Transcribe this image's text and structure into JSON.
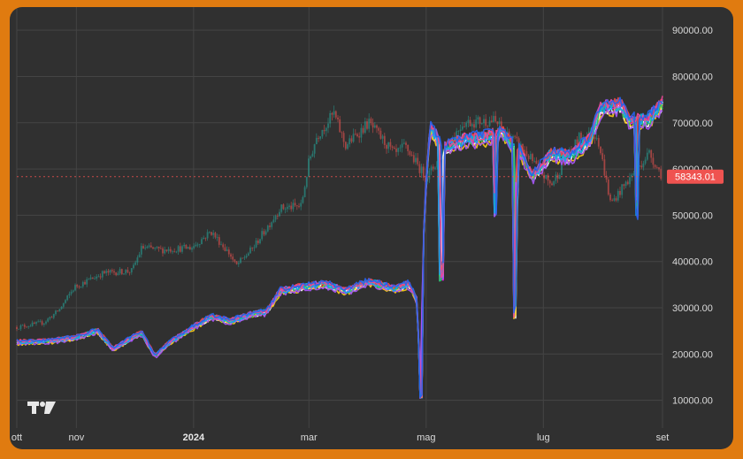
{
  "chart_data": {
    "type": "line",
    "title": "",
    "y_axis": {
      "range": [
        4000,
        95000
      ],
      "ticks": [
        "10000.00",
        "20000.00",
        "30000.00",
        "40000.00",
        "50000.00",
        "60000.00",
        "70000.00",
        "80000.00",
        "90000.00"
      ],
      "tick_values": [
        10000,
        20000,
        30000,
        40000,
        50000,
        60000,
        70000,
        80000,
        90000
      ],
      "position": "right"
    },
    "x_axis": {
      "type": "date",
      "range": [
        "2023-10-01",
        "2024-09-01"
      ],
      "ticks": [
        {
          "label": "ott",
          "date": "2023-10-01",
          "bold": false
        },
        {
          "label": "nov",
          "date": "2023-11-01",
          "bold": false
        },
        {
          "label": "2024",
          "date": "2024-01-01",
          "bold": true
        },
        {
          "label": "mar",
          "date": "2024-03-01",
          "bold": false
        },
        {
          "label": "mag",
          "date": "2024-05-01",
          "bold": false
        },
        {
          "label": "lug",
          "date": "2024-07-01",
          "bold": false
        },
        {
          "label": "set",
          "date": "2024-09-01",
          "bold": false
        }
      ]
    },
    "grid": true,
    "last_price": {
      "value": 58343.01,
      "label": "58343.01",
      "color": "#ef5350"
    },
    "candles": {
      "up_color": "#26a69a",
      "down_color": "#ef5350",
      "close_path": [
        [
          "2023-10-01",
          25800
        ],
        [
          "2023-10-15",
          26800
        ],
        [
          "2023-10-23",
          29500
        ],
        [
          "2023-10-31",
          34500
        ],
        [
          "2023-11-15",
          37500
        ],
        [
          "2023-11-30",
          38000
        ],
        [
          "2023-12-05",
          43000
        ],
        [
          "2023-12-15",
          42500
        ],
        [
          "2023-12-31",
          43000
        ],
        [
          "2024-01-10",
          46500
        ],
        [
          "2024-01-20",
          41500
        ],
        [
          "2024-01-23",
          39000
        ],
        [
          "2024-02-01",
          43000
        ],
        [
          "2024-02-15",
          51500
        ],
        [
          "2024-02-26",
          52000
        ],
        [
          "2024-03-01",
          61500
        ],
        [
          "2024-03-05",
          67000
        ],
        [
          "2024-03-14",
          72000
        ],
        [
          "2024-03-20",
          65000
        ],
        [
          "2024-04-01",
          70000
        ],
        [
          "2024-04-15",
          63000
        ],
        [
          "2024-04-20",
          65000
        ],
        [
          "2024-05-01",
          58000
        ],
        [
          "2024-05-20",
          70000
        ],
        [
          "2024-06-05",
          70500
        ],
        [
          "2024-06-20",
          64500
        ],
        [
          "2024-07-05",
          56500
        ],
        [
          "2024-07-20",
          67000
        ],
        [
          "2024-07-29",
          67500
        ],
        [
          "2024-08-05",
          52500
        ],
        [
          "2024-08-15",
          58000
        ],
        [
          "2024-08-25",
          63500
        ],
        [
          "2024-09-01",
          58343
        ]
      ]
    },
    "series_bundle": {
      "count": 12,
      "colors": [
        "#ff00ff",
        "#8b5cf6",
        "#3b82f6",
        "#06b6d4",
        "#ffffff",
        "#facc15",
        "#22c55e",
        "#ef4444",
        "#a855f7",
        "#0ea5e9",
        "#ec4899",
        "#2563eb"
      ],
      "base_path": [
        [
          "2023-10-01",
          22500
        ],
        [
          "2023-10-20",
          22800
        ],
        [
          "2023-11-01",
          23500
        ],
        [
          "2023-11-12",
          25000
        ],
        [
          "2023-11-20",
          21000
        ],
        [
          "2023-11-30",
          23500
        ],
        [
          "2023-12-05",
          24500
        ],
        [
          "2023-12-12",
          19500
        ],
        [
          "2023-12-18",
          22000
        ],
        [
          "2023-12-31",
          25500
        ],
        [
          "2024-01-10",
          28000
        ],
        [
          "2024-01-20",
          27000
        ],
        [
          "2024-01-31",
          28500
        ],
        [
          "2024-02-08",
          29000
        ],
        [
          "2024-02-15",
          33500
        ],
        [
          "2024-02-28",
          34500
        ],
        [
          "2024-03-10",
          35000
        ],
        [
          "2024-03-20",
          33500
        ],
        [
          "2024-04-01",
          35500
        ],
        [
          "2024-04-15",
          34000
        ],
        [
          "2024-04-22",
          35000
        ],
        [
          "2024-04-26",
          32000
        ],
        [
          "2024-04-28",
          16000
        ],
        [
          "2024-04-30",
          50000
        ],
        [
          "2024-05-03",
          69000
        ],
        [
          "2024-05-10",
          64000
        ],
        [
          "2024-05-20",
          66000
        ],
        [
          "2024-05-31",
          66500
        ],
        [
          "2024-06-10",
          67500
        ],
        [
          "2024-06-15",
          65000
        ],
        [
          "2024-06-20",
          63000
        ],
        [
          "2024-06-25",
          58000
        ],
        [
          "2024-07-05",
          63000
        ],
        [
          "2024-07-15",
          62500
        ],
        [
          "2024-07-25",
          66000
        ],
        [
          "2024-07-31",
          73000
        ],
        [
          "2024-08-10",
          73500
        ],
        [
          "2024-08-15",
          70000
        ],
        [
          "2024-08-25",
          70500
        ],
        [
          "2024-09-01",
          74000
        ]
      ],
      "spikes": [
        {
          "date": "2024-04-28",
          "value": 11000
        },
        {
          "date": "2024-05-09",
          "value": 38000
        },
        {
          "date": "2024-06-06",
          "value": 52000
        },
        {
          "date": "2024-06-16",
          "value": 29000
        },
        {
          "date": "2024-06-17",
          "value": 55000
        },
        {
          "date": "2024-08-19",
          "value": 52000
        }
      ]
    }
  }
}
